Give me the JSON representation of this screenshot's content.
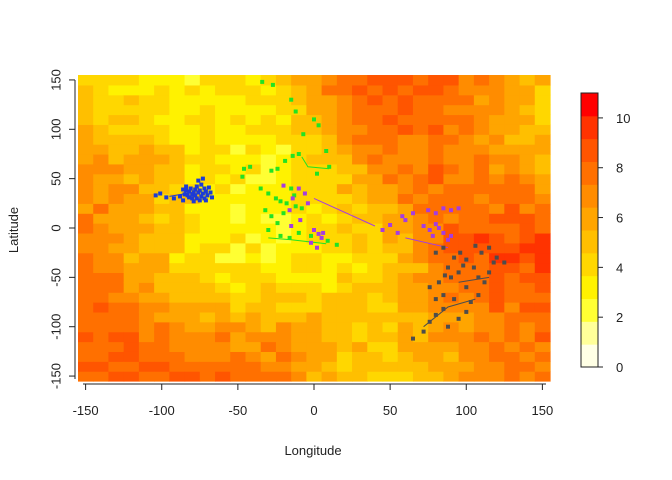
{
  "chart_data": {
    "type": "heatmap",
    "title": "",
    "xlabel": "Longitude",
    "ylabel": "Latitude",
    "xlim": [
      -155,
      155
    ],
    "ylim": [
      -155,
      155
    ],
    "xticks": [
      -150,
      -100,
      -50,
      0,
      50,
      100,
      150
    ],
    "yticks": [
      -150,
      -100,
      -50,
      0,
      50,
      100,
      150
    ],
    "grid": false,
    "colorbar": {
      "range": [
        0,
        11
      ],
      "ticks": [
        0,
        2,
        4,
        6,
        8,
        10
      ],
      "palette": [
        "#FFFFE5",
        "#FFFF99",
        "#FFFF33",
        "#FFF200",
        "#FFD700",
        "#FFBF00",
        "#FFA500",
        "#FF8C00",
        "#FF7000",
        "#FF5500",
        "#FF3300",
        "#FF0000"
      ]
    },
    "heat_regions": [
      {
        "value": 3.5,
        "x": -10,
        "y": 30
      },
      {
        "value": 2.5,
        "x": -40,
        "y": 15
      },
      {
        "value": 2.0,
        "x": -55,
        "y": -40
      },
      {
        "value": 1.5,
        "x": -28,
        "y": 75
      },
      {
        "value": 2.5,
        "x": 55,
        "y": -125
      },
      {
        "value": 3.0,
        "x": -100,
        "y": 115
      },
      {
        "value": 3.0,
        "x": 140,
        "y": 100
      },
      {
        "value": 3.5,
        "x": 10,
        "y": -20
      },
      {
        "value": 9.5,
        "x": 65,
        "y": 140
      },
      {
        "value": 9.0,
        "x": 100,
        "y": 75
      },
      {
        "value": 9.5,
        "x": 130,
        "y": -40
      },
      {
        "value": 8.5,
        "x": -120,
        "y": -150
      },
      {
        "value": 8.0,
        "x": -140,
        "y": -50
      },
      {
        "value": 8.5,
        "x": 40,
        "y": 65
      },
      {
        "value": 8.0,
        "x": 100,
        "y": -120
      },
      {
        "value": 7.5,
        "x": -120,
        "y": 60
      },
      {
        "value": 8.0,
        "x": -30,
        "y": -110
      },
      {
        "value": 7.5,
        "x": 140,
        "y": -130
      }
    ],
    "series": [
      {
        "color": "#1C3BD6",
        "points": [
          [
            -104,
            33
          ],
          [
            -101,
            35
          ],
          [
            -97,
            31
          ],
          [
            -92,
            30
          ],
          [
            -88,
            32
          ],
          [
            -86,
            28
          ],
          [
            -85,
            34
          ],
          [
            -84,
            38
          ],
          [
            -83,
            33
          ],
          [
            -82,
            31
          ],
          [
            -82,
            37
          ],
          [
            -81,
            40
          ],
          [
            -80,
            34
          ],
          [
            -80,
            30
          ],
          [
            -79,
            36
          ],
          [
            -78,
            39
          ],
          [
            -78,
            33
          ],
          [
            -77,
            30
          ],
          [
            -77,
            42
          ],
          [
            -76,
            36
          ],
          [
            -75,
            28
          ],
          [
            -75,
            38
          ],
          [
            -74,
            32
          ],
          [
            -74,
            44
          ],
          [
            -73,
            35
          ],
          [
            -72,
            40
          ],
          [
            -72,
            30
          ],
          [
            -71,
            37
          ],
          [
            -70,
            33
          ],
          [
            -69,
            41
          ],
          [
            -68,
            36
          ],
          [
            -67,
            31
          ],
          [
            -76,
            48
          ],
          [
            -73,
            50
          ],
          [
            -79,
            27
          ],
          [
            -84,
            42
          ],
          [
            -71,
            28
          ],
          [
            -86,
            39
          ]
        ]
      },
      {
        "color": "#22E322",
        "points": [
          [
            -34,
            148
          ],
          [
            -27,
            145
          ],
          [
            -15,
            130
          ],
          [
            -12,
            118
          ],
          [
            0,
            110
          ],
          [
            3,
            104
          ],
          [
            -7,
            95
          ],
          [
            8,
            78
          ],
          [
            10,
            62
          ],
          [
            2,
            55
          ],
          [
            -10,
            75
          ],
          [
            -14,
            73
          ],
          [
            -19,
            68
          ],
          [
            -24,
            60
          ],
          [
            -28,
            58
          ],
          [
            -42,
            62
          ],
          [
            -46,
            60
          ],
          [
            -47,
            52
          ],
          [
            -35,
            40
          ],
          [
            -30,
            35
          ],
          [
            -25,
            30
          ],
          [
            -22,
            27
          ],
          [
            -18,
            25
          ],
          [
            -12,
            22
          ],
          [
            -8,
            20
          ],
          [
            -15,
            40
          ],
          [
            -20,
            15
          ],
          [
            -28,
            12
          ],
          [
            -24,
            5
          ],
          [
            -30,
            -2
          ],
          [
            -22,
            -8
          ],
          [
            -16,
            -10
          ],
          [
            -10,
            -5
          ],
          [
            15,
            -17
          ],
          [
            9,
            -13
          ],
          [
            -2,
            -8
          ],
          [
            -32,
            18
          ],
          [
            -13,
            33
          ]
        ]
      },
      {
        "color": "#A53DE0",
        "points": [
          [
            -20,
            43
          ],
          [
            -10,
            40
          ],
          [
            -6,
            35
          ],
          [
            -14,
            30
          ],
          [
            -4,
            25
          ],
          [
            -16,
            18
          ],
          [
            -9,
            8
          ],
          [
            -15,
            2
          ],
          [
            0,
            -2
          ],
          [
            3,
            -6
          ],
          [
            5,
            -10
          ],
          [
            -2,
            -15
          ],
          [
            2,
            -20
          ],
          [
            6,
            -5
          ],
          [
            45,
            -2
          ],
          [
            55,
            -5
          ],
          [
            50,
            3
          ],
          [
            60,
            8
          ],
          [
            65,
            15
          ],
          [
            58,
            12
          ],
          [
            75,
            18
          ],
          [
            80,
            15
          ],
          [
            85,
            20
          ],
          [
            90,
            18
          ],
          [
            95,
            20
          ],
          [
            72,
            2
          ],
          [
            76,
            -2
          ],
          [
            80,
            4
          ],
          [
            85,
            -5
          ],
          [
            90,
            -8
          ],
          [
            78,
            -8
          ],
          [
            88,
            -12
          ],
          [
            82,
            0
          ]
        ]
      },
      {
        "color": "#4D4D4D",
        "points": [
          [
            65,
            -112
          ],
          [
            72,
            -105
          ],
          [
            76,
            -95
          ],
          [
            80,
            -88
          ],
          [
            85,
            -82
          ],
          [
            88,
            -100
          ],
          [
            95,
            -92
          ],
          [
            100,
            -85
          ],
          [
            103,
            -75
          ],
          [
            92,
            -72
          ],
          [
            85,
            -68
          ],
          [
            80,
            -72
          ],
          [
            76,
            -60
          ],
          [
            82,
            -55
          ],
          [
            90,
            -50
          ],
          [
            95,
            -45
          ],
          [
            88,
            -40
          ],
          [
            92,
            -30
          ],
          [
            80,
            -25
          ],
          [
            85,
            -20
          ],
          [
            96,
            -25
          ],
          [
            100,
            -32
          ],
          [
            105,
            -40
          ],
          [
            108,
            -50
          ],
          [
            112,
            -55
          ],
          [
            115,
            -45
          ],
          [
            118,
            -35
          ],
          [
            120,
            -30
          ],
          [
            110,
            -25
          ],
          [
            106,
            -18
          ],
          [
            115,
            -20
          ],
          [
            125,
            -35
          ],
          [
            100,
            -60
          ],
          [
            108,
            -68
          ],
          [
            86,
            -48
          ],
          [
            98,
            -38
          ]
        ]
      }
    ],
    "tracks": [
      {
        "color": "#22E322",
        "points": [
          [
            -8,
            72
          ],
          [
            -4,
            62
          ],
          [
            10,
            60
          ]
        ]
      },
      {
        "color": "#22E322",
        "points": [
          [
            -30,
            -10
          ],
          [
            -15,
            -12
          ],
          [
            8,
            -16
          ]
        ]
      },
      {
        "color": "#A53DE0",
        "points": [
          [
            0,
            30
          ],
          [
            40,
            2
          ]
        ]
      },
      {
        "color": "#A53DE0",
        "points": [
          [
            60,
            -10
          ],
          [
            88,
            -20
          ]
        ]
      },
      {
        "color": "#4D4D4D",
        "points": [
          [
            72,
            -100
          ],
          [
            88,
            -80
          ],
          [
            106,
            -72
          ]
        ]
      },
      {
        "color": "#4D4D4D",
        "points": [
          [
            95,
            -55
          ],
          [
            115,
            -50
          ]
        ]
      },
      {
        "color": "#1C3BD6",
        "points": [
          [
            -95,
            32
          ],
          [
            -80,
            36
          ]
        ]
      }
    ]
  }
}
